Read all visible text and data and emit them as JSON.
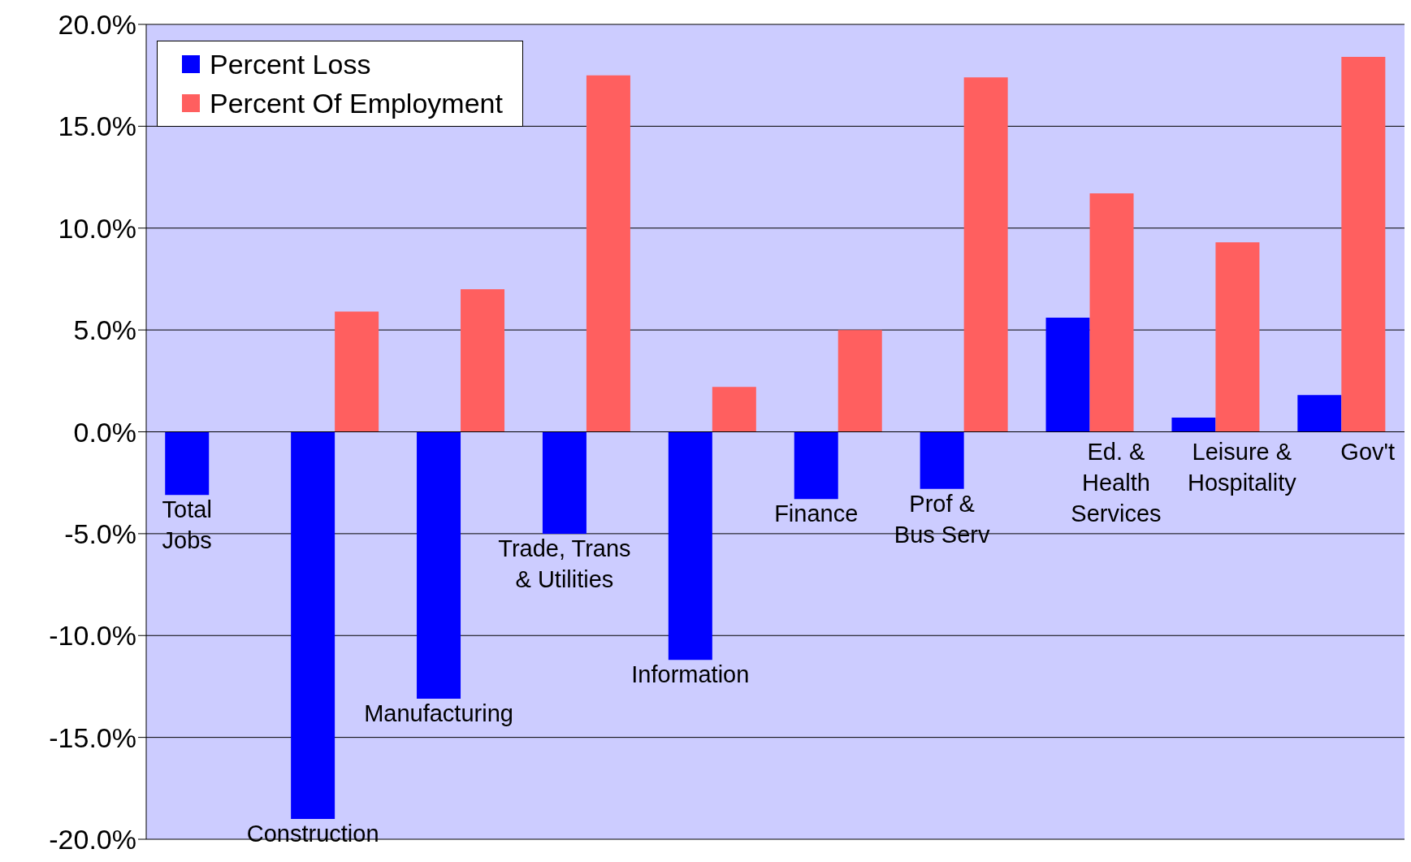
{
  "chart_data": {
    "type": "bar",
    "categories": [
      "Total\nJobs",
      "Construction",
      "Manufacturing",
      "Trade, Trans\n& Utilities",
      "Information",
      "Finance",
      "Prof &\nBus Serv",
      "Ed. &\nHealth\nServices",
      "Leisure &\nHospitality",
      "Gov't"
    ],
    "series": [
      {
        "name": "Percent Loss",
        "color": "#0000ff",
        "values": [
          -3.1,
          -19.0,
          -13.1,
          -5.0,
          -11.2,
          -3.3,
          -2.8,
          5.6,
          0.7,
          1.8
        ]
      },
      {
        "name": "Percent Of Employment",
        "color": "#ff5f5f",
        "values": [
          null,
          5.9,
          7.0,
          17.5,
          2.2,
          5.0,
          17.4,
          11.7,
          9.3,
          18.4
        ]
      }
    ],
    "ylim": [
      -20,
      20
    ],
    "yticks": [
      {
        "value": -20,
        "label": "-20.0%"
      },
      {
        "value": -15,
        "label": "-15.0%"
      },
      {
        "value": -10,
        "label": "-10.0%"
      },
      {
        "value": -5,
        "label": "-5.0%"
      },
      {
        "value": 0,
        "label": "0.0%"
      },
      {
        "value": 5,
        "label": "5.0%"
      },
      {
        "value": 10,
        "label": "10.0%"
      },
      {
        "value": 15,
        "label": "15.0%"
      },
      {
        "value": 20,
        "label": "20.0%"
      }
    ],
    "grid": "y",
    "legend": "top left",
    "tick_labels": "y"
  }
}
